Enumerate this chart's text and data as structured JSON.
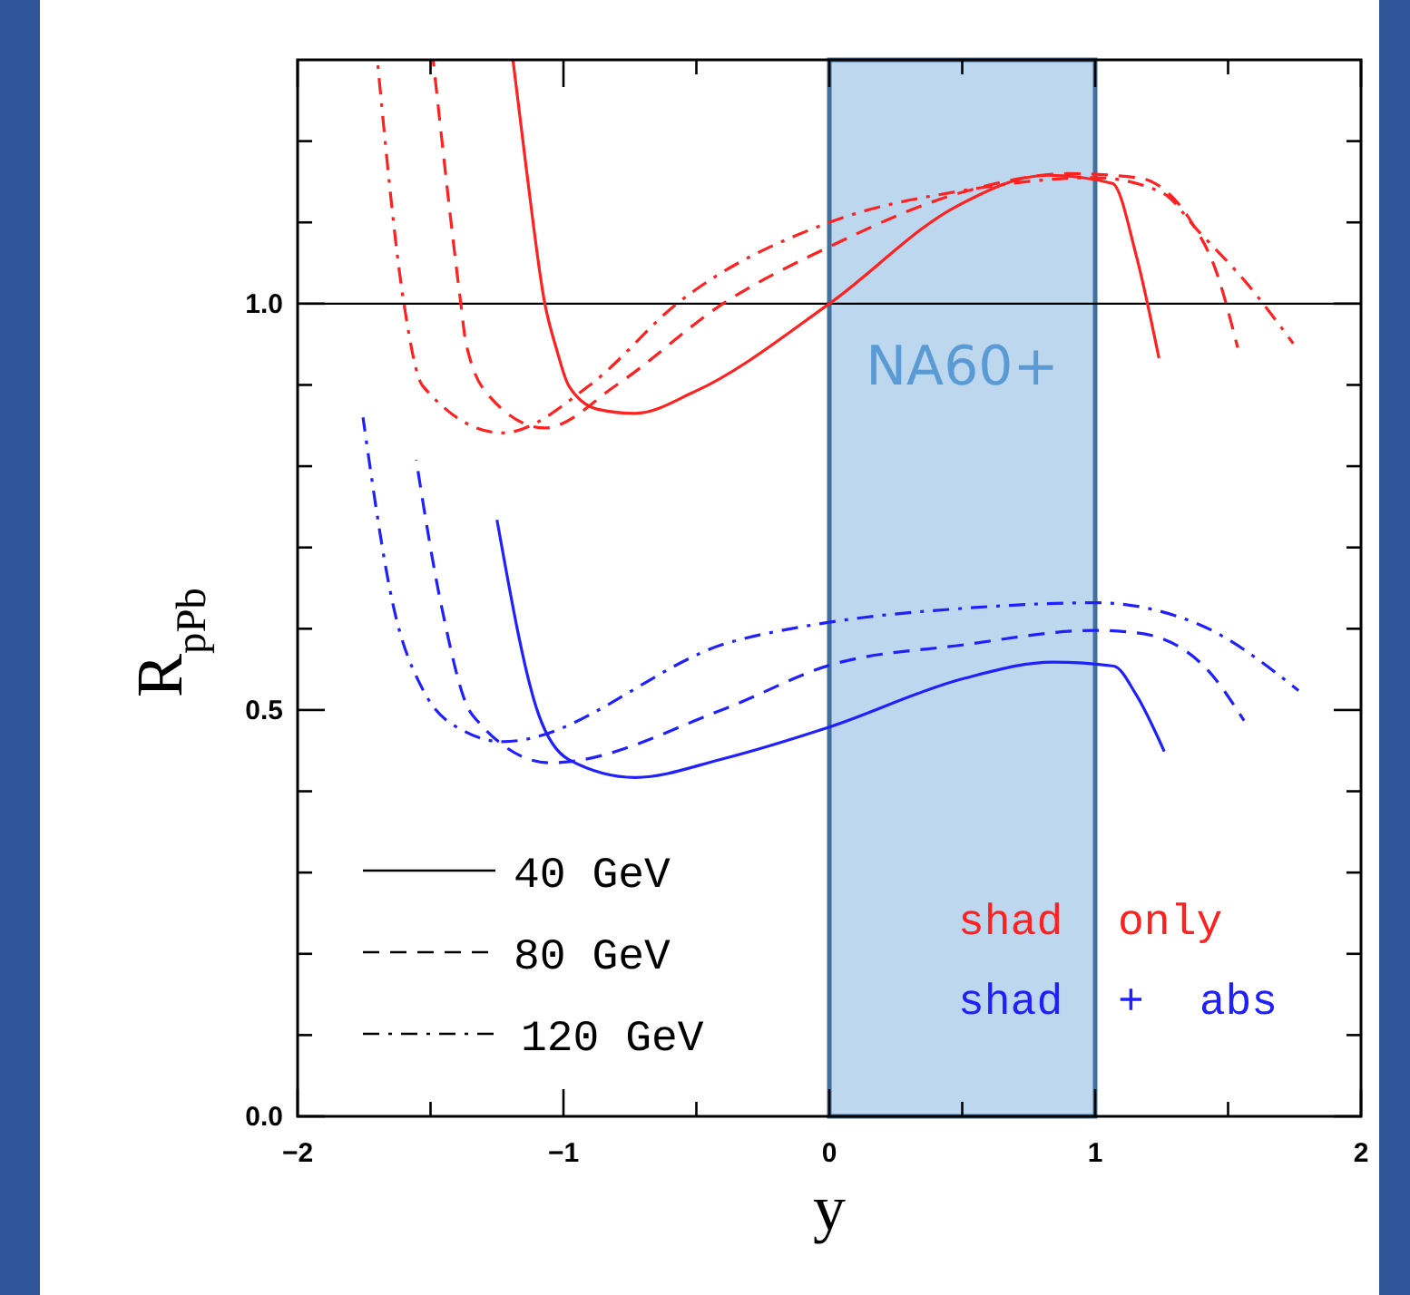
{
  "chart_data": {
    "type": "line",
    "xlabel": "y",
    "ylabel": "R$_{pPb}$",
    "xlim": [
      -2,
      2
    ],
    "ylim": [
      0,
      1.3
    ],
    "xticks": [
      -2,
      {
        "value": -1.5,
        "label": null
      },
      -1,
      {
        "value": -0.5,
        "label": null
      },
      0,
      {
        "value": 0.5,
        "label": null
      },
      1,
      {
        "value": 1.5,
        "label": null
      },
      2
    ],
    "yticks": [
      {
        "value": 0,
        "label": "0.0"
      },
      {
        "value": 0.1,
        "label": null
      },
      {
        "value": 0.2,
        "label": null
      },
      {
        "value": 0.3,
        "label": null
      },
      {
        "value": 0.4,
        "label": null
      },
      {
        "value": 0.5,
        "label": "0.5"
      },
      {
        "value": 0.6,
        "label": null
      },
      {
        "value": 0.7,
        "label": null
      },
      {
        "value": 0.8,
        "label": null
      },
      {
        "value": 0.9,
        "label": null
      },
      {
        "value": 1.0,
        "label": "1.0"
      },
      {
        "value": 1.1,
        "label": null
      },
      {
        "value": 1.2,
        "label": null
      }
    ],
    "grid": false,
    "ref_lines": [
      {
        "axis": "y",
        "value": 1.0,
        "color": "#000000"
      }
    ],
    "bands": [
      {
        "axis": "x",
        "from": 0,
        "to": 1,
        "label": "NA60+",
        "color": "#bdd7ee"
      }
    ],
    "annotations": [
      "40 GeV",
      "80 GeV",
      "120 GeV",
      "shad only",
      "shad + abs"
    ],
    "series": [
      {
        "color": "#ff2020",
        "line_style": "solid",
        "x": [
          -1.19,
          -1.14,
          -1.07,
          -1.026,
          -0.98,
          -0.87,
          -0.73,
          -0.505,
          0,
          0.48,
          0.82,
          1.065,
          1.154,
          1.24
        ],
        "values": [
          1.3,
          1.167,
          1.0,
          0.944,
          0.899,
          0.87,
          0.865,
          0.892,
          1.0,
          1.12,
          1.158,
          1.148,
          1.06,
          0.933
        ]
      },
      {
        "color": "#ff2020",
        "line_style": "dashed",
        "x": [
          -1.49,
          -1.386,
          -1.367,
          -1.276,
          -1.07,
          -0.8,
          -0.4,
          0,
          0.5,
          0.9,
          1.16,
          1.363,
          1.454,
          1.536
        ],
        "values": [
          1.3,
          1.0,
          0.952,
          0.885,
          0.847,
          0.9,
          1.0,
          1.07,
          1.137,
          1.16,
          1.155,
          1.1,
          1.041,
          0.946
        ]
      },
      {
        "color": "#ff2020",
        "line_style": "dashdot",
        "x": [
          -1.7,
          -1.6,
          -1.53,
          -1.23,
          -0.9,
          -0.573,
          0,
          0.5,
          1.0,
          1.25,
          1.386,
          1.568,
          1.745
        ],
        "values": [
          1.3,
          1.0,
          0.899,
          0.841,
          0.9,
          1.0,
          1.1,
          1.139,
          1.155,
          1.137,
          1.09,
          1.026,
          0.951
        ]
      },
      {
        "color": "#2020ff",
        "line_style": "solid",
        "x": [
          -1.25,
          -1.094,
          -0.98,
          -0.73,
          -0.4,
          0,
          0.508,
          0.84,
          1.07,
          1.154,
          1.26
        ],
        "values": [
          0.734,
          0.495,
          0.439,
          0.417,
          0.44,
          0.479,
          0.539,
          0.559,
          0.554,
          0.519,
          0.449
        ]
      },
      {
        "color": "#2020ff",
        "line_style": "dashed",
        "x": [
          -1.554,
          -1.459,
          -1.345,
          -1.05,
          -0.39,
          0,
          0.5,
          1.0,
          1.158,
          1.418,
          1.56
        ],
        "values": [
          0.808,
          0.628,
          0.495,
          0.435,
          0.502,
          0.555,
          0.58,
          0.598,
          0.595,
          0.551,
          0.487
        ]
      },
      {
        "color": "#2020ff",
        "line_style": "dashdot",
        "x": [
          -1.754,
          -1.64,
          -1.527,
          -1.367,
          -1.23,
          -0.367,
          0,
          0.5,
          1.0,
          1.386,
          1.765
        ],
        "values": [
          0.86,
          0.628,
          0.524,
          0.473,
          0.461,
          0.584,
          0.608,
          0.625,
          0.632,
          0.606,
          0.524
        ]
      }
    ]
  }
}
